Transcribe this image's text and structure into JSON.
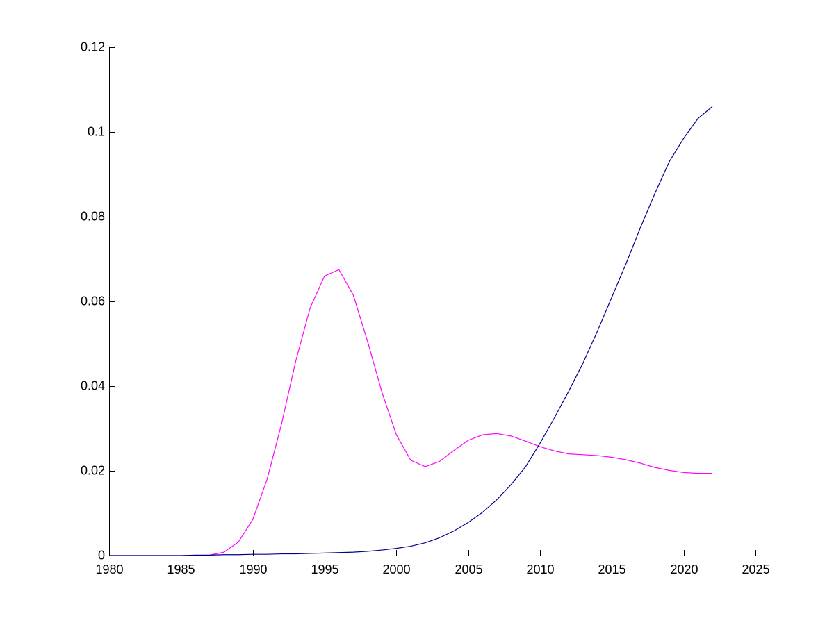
{
  "chart_data": {
    "type": "line",
    "title": "",
    "xlabel": "",
    "ylabel": "",
    "xlim": [
      1980,
      2025
    ],
    "ylim": [
      0,
      0.12
    ],
    "grid": false,
    "box": false,
    "x_ticks": [
      1980,
      1985,
      1990,
      1995,
      2000,
      2005,
      2010,
      2015,
      2020,
      2025
    ],
    "x_tick_labels": [
      "1980",
      "1985",
      "1990",
      "1995",
      "2000",
      "2005",
      "2010",
      "2015",
      "2020",
      "2025"
    ],
    "y_ticks": [
      0,
      0.02,
      0.04,
      0.06,
      0.08,
      0.1,
      0.12
    ],
    "y_tick_labels": [
      "0",
      "0.02",
      "0.04",
      "0.06",
      "0.08",
      "0.1",
      "0.12"
    ],
    "x": [
      1980,
      1981,
      1982,
      1983,
      1984,
      1985,
      1986,
      1987,
      1988,
      1989,
      1990,
      1991,
      1992,
      1993,
      1994,
      1995,
      1996,
      1997,
      1998,
      1999,
      2000,
      2001,
      2002,
      2003,
      2004,
      2005,
      2006,
      2007,
      2008,
      2009,
      2010,
      2011,
      2012,
      2013,
      2014,
      2015,
      2016,
      2017,
      2018,
      2019,
      2020,
      2021,
      2022
    ],
    "series": [
      {
        "color": "#ff00ff",
        "values": [
          0,
          0,
          0,
          0,
          0,
          0,
          0,
          0.0001,
          0.0008,
          0.0032,
          0.0085,
          0.018,
          0.031,
          0.046,
          0.0585,
          0.066,
          0.0675,
          0.0615,
          0.0505,
          0.0385,
          0.0285,
          0.0225,
          0.021,
          0.0222,
          0.0248,
          0.0272,
          0.0285,
          0.0288,
          0.0282,
          0.027,
          0.0257,
          0.0247,
          0.024,
          0.0238,
          0.0236,
          0.0232,
          0.0226,
          0.0218,
          0.0208,
          0.0201,
          0.0196,
          0.0194,
          0.0194
        ]
      },
      {
        "color": "#00008b",
        "values": [
          0,
          0,
          0,
          0,
          0,
          0,
          0.0001,
          0.0001,
          0.0002,
          0.0002,
          0.0003,
          0.0003,
          0.0004,
          0.0004,
          0.0005,
          0.0006,
          0.0007,
          0.0008,
          0.001,
          0.0013,
          0.0017,
          0.0022,
          0.003,
          0.0042,
          0.0058,
          0.0078,
          0.0102,
          0.0132,
          0.0168,
          0.021,
          0.0265,
          0.0325,
          0.0388,
          0.0455,
          0.053,
          0.061,
          0.069,
          0.0775,
          0.0855,
          0.093,
          0.0985,
          0.1032,
          0.106
        ]
      }
    ]
  }
}
